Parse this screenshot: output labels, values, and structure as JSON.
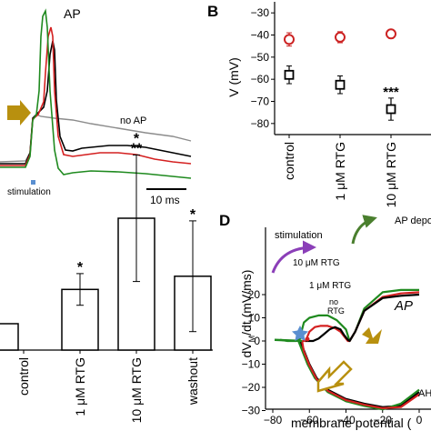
{
  "panels": {
    "b_label": "B",
    "d_label": "D"
  },
  "panel_a": {
    "ap_label": "AP",
    "no_ap_label": "no AP",
    "stimulation_label": "stimulation",
    "scale_label": "10 ms",
    "colors": {
      "control": "#000000",
      "rtg1": "#d42020",
      "rtg10": "#1f8a1f",
      "noap": "#8c8c8c",
      "arrow": "#b8900f",
      "stim": "#5a8fd0"
    }
  },
  "chart_data": [
    {
      "type": "scatter",
      "panel": "B",
      "title": "",
      "ylabel": "V (mV)",
      "xlabel": "",
      "categories": [
        "control",
        "1 μM RTG",
        "10 μM RTG"
      ],
      "ylim": [
        -85,
        -25
      ],
      "yticks": [
        -80,
        -70,
        -60,
        -50,
        -40,
        -30
      ],
      "series": [
        {
          "marker": "circle",
          "color": "#cc2222",
          "values": [
            -42,
            -41,
            -39.5
          ],
          "errors": [
            3,
            2.5,
            2
          ]
        },
        {
          "marker": "square",
          "color": "#000000",
          "values": [
            -58,
            -62.5,
            -73.5
          ],
          "errors": [
            4,
            4,
            5
          ]
        }
      ],
      "annotations": [
        "",
        "",
        "***"
      ]
    },
    {
      "type": "bar",
      "panel": "C",
      "categories": [
        "control",
        "1 μM RTG",
        "10 μM RTG",
        "washout"
      ],
      "values": [
        1.0,
        2.3,
        5.0,
        2.8
      ],
      "errors": [
        0,
        0.6,
        2.4,
        2.1
      ],
      "annotations": [
        "",
        "*",
        "*\n**",
        "*"
      ],
      "ylim": [
        0,
        8
      ]
    },
    {
      "type": "line",
      "panel": "D",
      "title": "",
      "xlabel": "membrane potential (",
      "ylabel": "dV",
      "ylabel_sub": "M",
      "ylabel_rest": "/dt (mV/ms)",
      "xlim": [
        -85,
        0
      ],
      "ylim": [
        -36,
        26
      ],
      "xticks": [
        -80,
        -60,
        -40,
        -20,
        0
      ],
      "yticks": [
        -30,
        -20,
        -10,
        0,
        10,
        20
      ],
      "labels": {
        "stimulation": "stimulation",
        "rtg10": "10 μM RTG",
        "rtg1": "1 μM RTG",
        "no_rtg_line1": "no",
        "no_rtg_line2": "RTG",
        "ap": "AP",
        "ap_dep": "AP depo",
        "ah": "AH"
      },
      "series": [
        {
          "name": "10 μM RTG",
          "color": "#1f8a1f",
          "x": [
            -76,
            -72,
            -67,
            -65,
            -64,
            -63,
            -60,
            -55,
            -50,
            -45,
            -40,
            -38,
            -35,
            -30,
            -20,
            -10,
            0
          ],
          "y": [
            0.5,
            0,
            0,
            1,
            5,
            8,
            10,
            11,
            11,
            9,
            5,
            0,
            4,
            14,
            21,
            22,
            22
          ]
        },
        {
          "name": "1 μM RTG",
          "color": "#d42020",
          "x": [
            -64,
            -62,
            -61,
            -60,
            -57,
            -54,
            -50,
            -46,
            -43,
            -41,
            -39,
            -38,
            -35,
            -30,
            -20,
            -10,
            0
          ],
          "y": [
            0,
            0,
            2,
            4,
            6,
            6.5,
            6.5,
            5.5,
            4,
            2,
            0,
            0,
            4,
            13,
            19,
            20.5,
            21
          ]
        },
        {
          "name": "no RTG",
          "color": "#000000",
          "x": [
            -62,
            -58,
            -55,
            -52,
            -49,
            -46,
            -43,
            -41,
            -39,
            -38,
            -35,
            -30,
            -20,
            -10,
            0
          ],
          "y": [
            0,
            0,
            1,
            3,
            5,
            6,
            5,
            2.5,
            0.5,
            0,
            4,
            13,
            18.5,
            19.5,
            20
          ]
        },
        {
          "name": "repolarization black",
          "color": "#000000",
          "x": [
            0,
            -10,
            -20,
            -30,
            -40,
            -50,
            -56,
            -60,
            -63,
            -65
          ],
          "y": [
            -22,
            -28,
            -28.5,
            -27,
            -25,
            -21,
            -16,
            -10,
            -4,
            0
          ]
        },
        {
          "name": "repolarization green",
          "color": "#1f8a1f",
          "x": [
            0,
            -10,
            -20,
            -30,
            -40,
            -50,
            -57,
            -61,
            -64,
            -66
          ],
          "y": [
            -21,
            -27,
            -29.5,
            -28,
            -26,
            -22,
            -16,
            -10,
            -4,
            0
          ]
        },
        {
          "name": "repolarization red",
          "color": "#d42020",
          "x": [
            0,
            -10,
            -20,
            -30,
            -40,
            -50,
            -56,
            -60,
            -63,
            -64
          ],
          "y": [
            -23,
            -28.5,
            -29,
            -27.5,
            -25.5,
            -21.5,
            -16.5,
            -10.5,
            -4.5,
            0
          ]
        }
      ]
    }
  ]
}
